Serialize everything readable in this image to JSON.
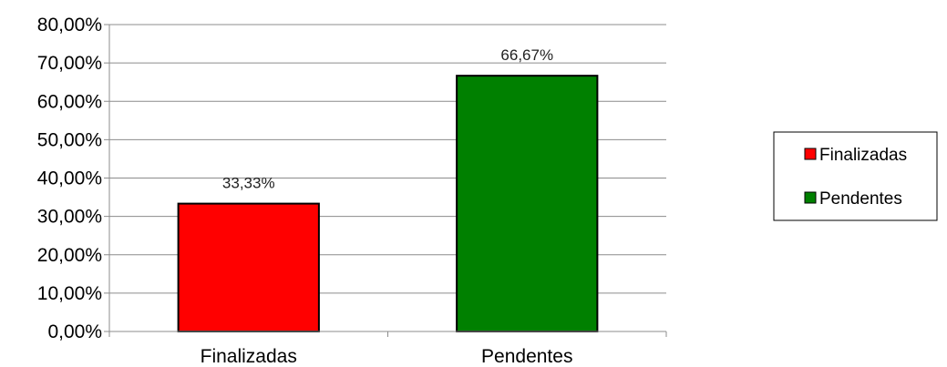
{
  "chart_data": {
    "type": "bar",
    "categories": [
      "Finalizadas",
      "Pendentes"
    ],
    "values": [
      33.33,
      66.67
    ],
    "value_labels": [
      "33,33%",
      "66,67%"
    ],
    "colors": [
      "#ff0000",
      "#008000"
    ],
    "ylim": [
      0,
      80
    ],
    "ytick_step": 10,
    "ytick_labels": [
      "0,00%",
      "10,00%",
      "20,00%",
      "30,00%",
      "40,00%",
      "50,00%",
      "60,00%",
      "70,00%",
      "80,00%"
    ],
    "grid": true,
    "legend": {
      "position": "right",
      "entries": [
        {
          "label": "Finalizadas",
          "color": "#ff0000"
        },
        {
          "label": "Pendentes",
          "color": "#008000"
        }
      ]
    }
  }
}
